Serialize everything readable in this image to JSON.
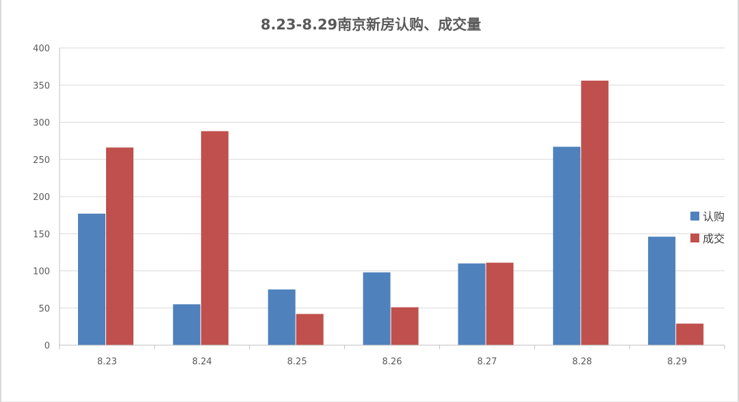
{
  "chart_data": {
    "type": "bar",
    "title": "8.23-8.29南京新房认购、成交量",
    "categories": [
      "8.23",
      "8.24",
      "8.25",
      "8.26",
      "8.27",
      "8.28",
      "8.29"
    ],
    "series": [
      {
        "name": "认购",
        "color": "#4f81bd",
        "values": [
          177,
          55,
          75,
          98,
          110,
          267,
          146
        ]
      },
      {
        "name": "成交",
        "color": "#c0504d",
        "values": [
          266,
          288,
          42,
          51,
          111,
          356,
          29
        ]
      }
    ],
    "xlabel": "",
    "ylabel": "",
    "ylim": [
      0,
      400
    ],
    "yticks": [
      0,
      50,
      100,
      150,
      200,
      250,
      300,
      350,
      400
    ],
    "grid": true,
    "legend_position": "right"
  }
}
